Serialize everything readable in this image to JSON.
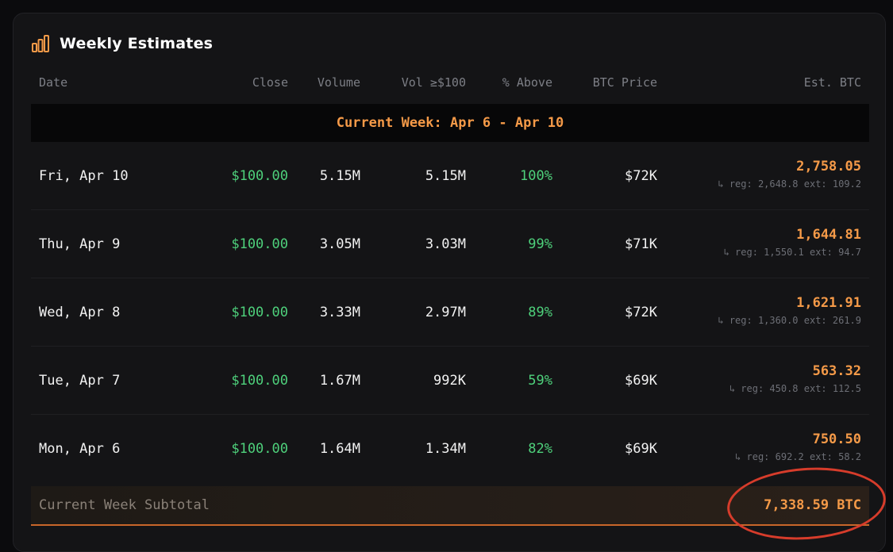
{
  "card": {
    "title": "Weekly Estimates",
    "icon": "bar-chart-icon"
  },
  "columns": {
    "date": "Date",
    "close": "Close",
    "volume": "Volume",
    "vol100": "Vol ≥$100",
    "above": "% Above",
    "btc_price": "BTC Price",
    "est_btc": "Est. BTC"
  },
  "week_banner": "Current Week: Apr 6 - Apr 10",
  "rows": [
    {
      "date": "Fri, Apr 10",
      "close": "$100.00",
      "volume": "5.15M",
      "vol100": "5.15M",
      "above": "100%",
      "btc_price": "$72K",
      "est": "2,758.05",
      "sub": "↳ reg: 2,648.8 ext: 109.2"
    },
    {
      "date": "Thu, Apr 9",
      "close": "$100.00",
      "volume": "3.05M",
      "vol100": "3.03M",
      "above": "99%",
      "btc_price": "$71K",
      "est": "1,644.81",
      "sub": "↳ reg: 1,550.1 ext: 94.7"
    },
    {
      "date": "Wed, Apr 8",
      "close": "$100.00",
      "volume": "3.33M",
      "vol100": "2.97M",
      "above": "89%",
      "btc_price": "$72K",
      "est": "1,621.91",
      "sub": "↳ reg: 1,360.0 ext: 261.9"
    },
    {
      "date": "Tue, Apr 7",
      "close": "$100.00",
      "volume": "1.67M",
      "vol100": "992K",
      "above": "59%",
      "btc_price": "$69K",
      "est": "563.32",
      "sub": "↳ reg: 450.8 ext: 112.5"
    },
    {
      "date": "Mon, Apr 6",
      "close": "$100.00",
      "volume": "1.64M",
      "vol100": "1.34M",
      "above": "82%",
      "btc_price": "$69K",
      "est": "750.50",
      "sub": "↳ reg: 692.2 ext: 58.2"
    }
  ],
  "subtotal": {
    "label": "Current Week Subtotal",
    "value": "7,338.59 BTC"
  },
  "colors": {
    "accent": "#f59a48",
    "positive": "#4ed07b",
    "annotation": "#d63c2b"
  }
}
